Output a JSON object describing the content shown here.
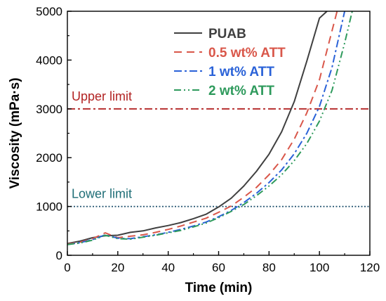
{
  "chart_data": {
    "type": "line",
    "title": "",
    "xlabel": "Time (min)",
    "ylabel": "Viscosity (mPa·s)",
    "xlim": [
      0,
      120
    ],
    "ylim": [
      0,
      5000
    ],
    "xticks": [
      0,
      20,
      40,
      60,
      80,
      100,
      120
    ],
    "yticks": [
      0,
      1000,
      2000,
      3000,
      4000,
      5000
    ],
    "grid": false,
    "legend_position": "top-right",
    "series": [
      {
        "name": "PUAB",
        "color": "#404040",
        "dash": "solid",
        "x": [
          0,
          5,
          10,
          15,
          20,
          25,
          30,
          35,
          40,
          45,
          50,
          55,
          60,
          65,
          70,
          75,
          80,
          85,
          90,
          95,
          100,
          103
        ],
        "y": [
          240,
          290,
          360,
          400,
          410,
          470,
          500,
          560,
          610,
          670,
          750,
          840,
          990,
          1170,
          1420,
          1720,
          2070,
          2530,
          3150,
          3980,
          4860,
          5000
        ]
      },
      {
        "name": "0.5 wt% ATT",
        "color": "#d9574a",
        "dash": "dashed",
        "x": [
          0,
          5,
          10,
          15,
          20,
          25,
          30,
          35,
          40,
          45,
          50,
          55,
          60,
          65,
          70,
          75,
          80,
          85,
          90,
          95,
          100,
          104,
          107
        ],
        "y": [
          230,
          270,
          340,
          460,
          360,
          390,
          420,
          470,
          530,
          600,
          680,
          760,
          880,
          1010,
          1190,
          1390,
          1650,
          1960,
          2380,
          2920,
          3600,
          4400,
          5000
        ]
      },
      {
        "name": "1 wt% ATT",
        "color": "#2a62d8",
        "dash": "dashdot",
        "x": [
          0,
          5,
          10,
          15,
          20,
          25,
          30,
          35,
          40,
          45,
          50,
          55,
          60,
          65,
          70,
          75,
          80,
          85,
          90,
          95,
          100,
          105,
          110
        ],
        "y": [
          220,
          260,
          320,
          420,
          350,
          340,
          380,
          420,
          470,
          530,
          600,
          680,
          790,
          920,
          1080,
          1270,
          1490,
          1750,
          2080,
          2500,
          3050,
          3850,
          5000
        ]
      },
      {
        "name": "2 wt% ATT",
        "color": "#2e9a5c",
        "dash": "dashdotdot",
        "x": [
          0,
          5,
          10,
          15,
          20,
          25,
          30,
          35,
          40,
          45,
          50,
          55,
          60,
          65,
          70,
          75,
          80,
          85,
          90,
          95,
          100,
          105,
          110,
          113
        ],
        "y": [
          220,
          250,
          310,
          410,
          340,
          330,
          370,
          410,
          460,
          510,
          580,
          660,
          770,
          900,
          1040,
          1220,
          1420,
          1650,
          1940,
          2290,
          2750,
          3380,
          4350,
          5000
        ]
      }
    ],
    "reference_lines": [
      {
        "label": "Upper limit",
        "y": 3000,
        "color": "#b22222",
        "dash": "dashdot",
        "label_color": "#b22222"
      },
      {
        "label": "Lower limit",
        "y": 1000,
        "color": "#1c4f6b",
        "dash": "dotted",
        "label_color": "#1f6e77"
      }
    ]
  }
}
